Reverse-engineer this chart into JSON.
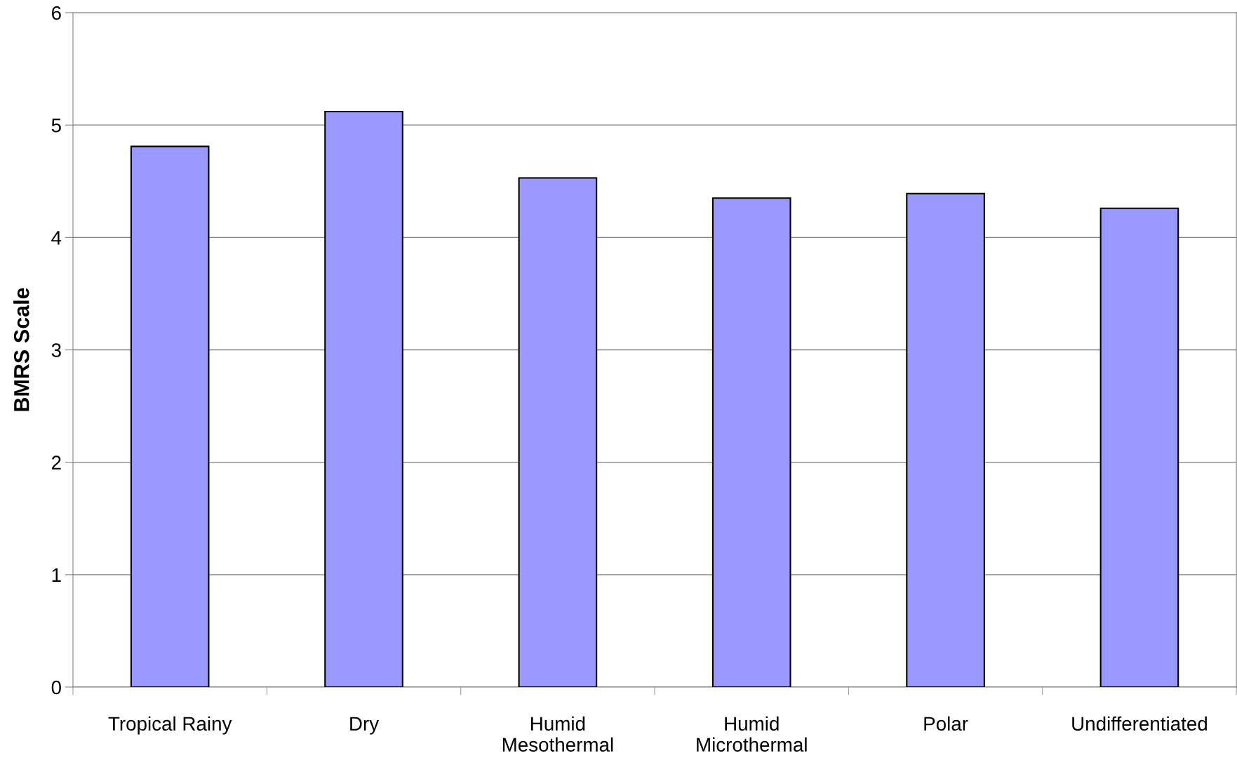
{
  "chart_data": {
    "type": "bar",
    "ylabel": "BMRS Scale",
    "categories": [
      "Tropical Rainy",
      "Dry",
      "Humid\nMesothermal",
      "Humid\nMicrothermal",
      "Polar",
      "Undifferentiated"
    ],
    "values": [
      4.81,
      5.12,
      4.53,
      4.35,
      4.39,
      4.26
    ],
    "color": "#9999ff",
    "ylim": [
      0,
      6
    ],
    "yticks": [
      0,
      1,
      2,
      3,
      4,
      5,
      6
    ],
    "grid": "y"
  }
}
